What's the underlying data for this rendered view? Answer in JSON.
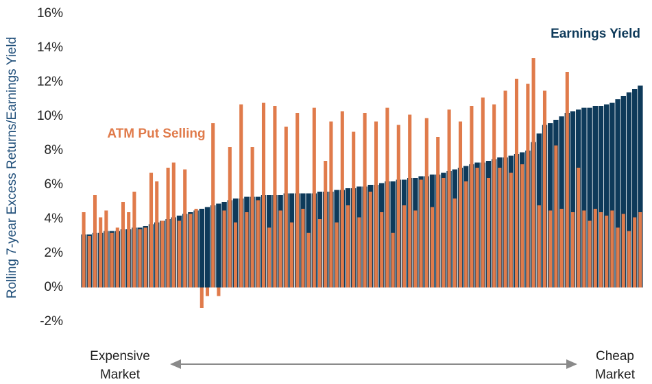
{
  "chart_data": {
    "type": "bar",
    "ylabel": "Rolling 7-year Excess Returns/Earnings Yield",
    "annotations": [
      {
        "text": "Earnings Yield"
      },
      {
        "text": "ATM Put Selling"
      }
    ],
    "x_axis_ends": {
      "left": [
        "Expensive",
        "Market"
      ],
      "right": [
        "Cheap",
        "Market"
      ]
    },
    "categories": [
      null,
      null,
      null,
      null,
      null,
      null,
      null,
      null,
      null,
      null,
      null,
      null,
      null,
      null,
      null,
      null,
      null,
      null,
      null,
      null,
      null,
      null,
      null,
      null,
      null,
      null,
      null,
      null,
      null,
      null,
      null,
      null,
      null,
      null,
      null,
      null,
      null,
      null,
      null,
      null,
      null,
      null,
      null,
      null,
      null,
      null,
      null,
      null,
      null,
      null,
      null,
      null,
      null,
      null,
      null,
      null,
      null,
      null,
      null,
      null,
      null,
      null,
      null,
      null,
      null,
      null,
      null,
      null,
      null,
      null,
      null,
      null,
      null,
      null,
      null,
      null,
      null,
      null,
      null,
      null,
      null,
      null,
      null,
      null,
      null,
      null,
      null,
      null,
      null,
      null,
      null,
      null,
      null,
      null,
      null,
      null,
      null,
      null,
      null,
      null
    ],
    "series": [
      {
        "name": "Earnings Yield",
        "color": "#0e3a5a",
        "values": [
          3.1,
          3.1,
          3.2,
          3.2,
          3.3,
          3.3,
          3.3,
          3.4,
          3.4,
          3.5,
          3.5,
          3.6,
          3.7,
          3.8,
          3.9,
          4.0,
          4.1,
          4.2,
          4.3,
          4.4,
          4.5,
          4.6,
          4.7,
          4.8,
          4.9,
          5.0,
          5.1,
          5.2,
          5.2,
          5.3,
          5.3,
          5.3,
          5.4,
          5.4,
          5.4,
          5.4,
          5.5,
          5.5,
          5.5,
          5.5,
          5.5,
          5.5,
          5.6,
          5.6,
          5.6,
          5.7,
          5.7,
          5.8,
          5.8,
          5.9,
          5.9,
          6.0,
          6.0,
          6.1,
          6.2,
          6.2,
          6.3,
          6.3,
          6.4,
          6.4,
          6.5,
          6.5,
          6.6,
          6.6,
          6.7,
          6.8,
          6.9,
          7.0,
          7.1,
          7.2,
          7.3,
          7.3,
          7.4,
          7.5,
          7.6,
          7.6,
          7.7,
          7.8,
          7.9,
          8.0,
          8.5,
          9.0,
          9.5,
          9.6,
          9.8,
          10.0,
          10.2,
          10.3,
          10.4,
          10.5,
          10.5,
          10.6,
          10.6,
          10.7,
          10.8,
          11.0,
          11.2,
          11.4,
          11.6,
          11.8
        ]
      },
      {
        "name": "ATM Put Selling",
        "color": "#e07b4b",
        "values": [
          4.4,
          3.0,
          5.4,
          4.1,
          4.5,
          3.2,
          3.5,
          5.0,
          4.4,
          5.6,
          3.4,
          3.5,
          6.7,
          6.2,
          3.9,
          7.0,
          7.3,
          3.9,
          6.9,
          4.3,
          4.6,
          -1.2,
          -0.5,
          9.6,
          -0.5,
          4.5,
          8.2,
          3.8,
          10.7,
          4.4,
          8.2,
          5.1,
          10.8,
          3.5,
          10.6,
          4.5,
          9.4,
          3.8,
          10.2,
          4.6,
          3.2,
          10.5,
          4.0,
          7.4,
          9.7,
          3.8,
          10.3,
          4.8,
          9.1,
          4.1,
          10.2,
          5.6,
          9.7,
          4.4,
          10.5,
          3.2,
          9.5,
          4.8,
          10.1,
          4.5,
          6.3,
          9.9,
          4.7,
          8.8,
          6.4,
          10.4,
          5.2,
          9.7,
          6.2,
          10.6,
          7.0,
          11.1,
          6.4,
          10.7,
          7.0,
          11.5,
          6.7,
          12.2,
          7.2,
          11.9,
          13.4,
          4.8,
          11.5,
          4.5,
          8.3,
          4.6,
          12.6,
          4.4,
          7.0,
          4.5,
          3.9,
          4.6,
          4.4,
          4.2,
          4.5,
          3.5,
          4.3,
          3.3,
          4.1,
          4.4
        ]
      }
    ],
    "ylim": [
      -2,
      16
    ],
    "yticks": [
      {
        "value": -2,
        "label": "-2%"
      },
      {
        "value": 0,
        "label": "0%"
      },
      {
        "value": 2,
        "label": "2%"
      },
      {
        "value": 4,
        "label": "4%"
      },
      {
        "value": 6,
        "label": "6%"
      },
      {
        "value": 8,
        "label": "8%"
      },
      {
        "value": 10,
        "label": "10%"
      },
      {
        "value": 12,
        "label": "12%"
      },
      {
        "value": 14,
        "label": "14%"
      },
      {
        "value": 16,
        "label": "16%"
      }
    ],
    "grid": false
  }
}
